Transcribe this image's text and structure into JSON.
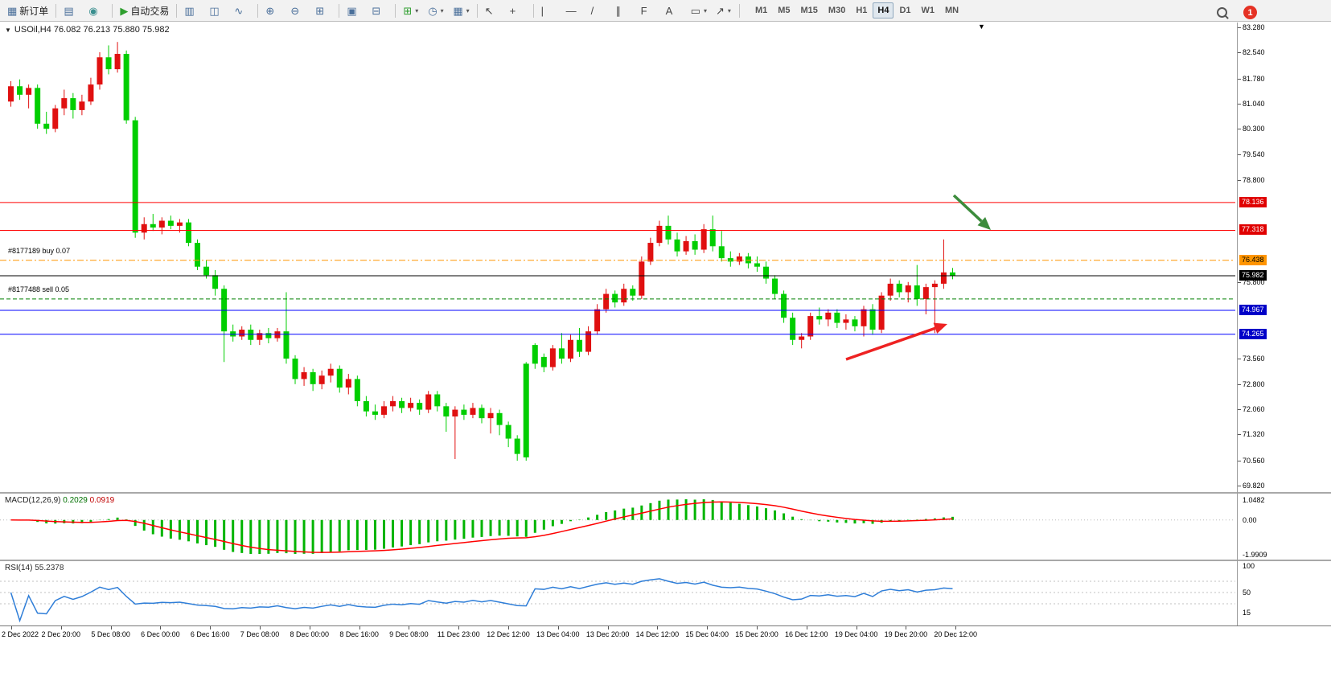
{
  "colors": {
    "candle_up": "#e01010",
    "candle_down": "#00ce00",
    "macd_hist": "#00b400",
    "macd_signal": "#ff0000",
    "rsi_line": "#2f7ed8",
    "badge_red": "#e00000",
    "badge_blue": "#0000c8",
    "badge_orange": "#ff9500"
  },
  "toolbar": {
    "notification_count": "1",
    "items": [
      {
        "name": "new-order-button",
        "icon": "new-order-icon",
        "glyph": "▦",
        "cls": "c-blue",
        "label": "新订单"
      },
      {
        "type": "sep"
      },
      {
        "name": "market-watch-button",
        "icon": "market-watch-icon",
        "glyph": "▤",
        "cls": "c-blue"
      },
      {
        "name": "strategy-tester-button",
        "icon": "tester-icon",
        "glyph": "◉",
        "cls": "c-teal"
      },
      {
        "type": "sep"
      },
      {
        "name": "auto-trading-button",
        "icon": "play-icon",
        "glyph": "▶",
        "cls": "c-green",
        "label": "自动交易"
      },
      {
        "type": "sep"
      },
      {
        "name": "bar-chart-button",
        "icon": "bar-chart-icon",
        "glyph": "▥",
        "cls": "c-blue"
      },
      {
        "name": "candlestick-chart-button",
        "icon": "candlestick-chart-icon",
        "glyph": "◫",
        "cls": "c-blue"
      },
      {
        "name": "line-chart-button",
        "icon": "line-chart-icon",
        "glyph": "∿",
        "cls": "c-blue"
      },
      {
        "type": "sep"
      },
      {
        "name": "zoom-in-button",
        "icon": "zoom-in-icon",
        "glyph": "⊕",
        "cls": "c-blue"
      },
      {
        "name": "zoom-out-button",
        "icon": "zoom-out-icon",
        "glyph": "⊖",
        "cls": "c-blue"
      },
      {
        "name": "chart-grid-button",
        "icon": "grid-icon",
        "glyph": "⊞",
        "cls": "c-blue"
      },
      {
        "type": "sep"
      },
      {
        "name": "tile-windows-button",
        "icon": "tile-windows-icon",
        "glyph": "▣",
        "cls": "c-blue"
      },
      {
        "name": "chart-list-button",
        "icon": "chart-list-icon",
        "glyph": "⊟",
        "cls": "c-blue"
      },
      {
        "type": "sep"
      },
      {
        "name": "new-chart-button",
        "icon": "new-chart-icon",
        "glyph": "⊞",
        "cls": "c-green",
        "dropdown": true
      },
      {
        "name": "period-button",
        "icon": "clock-icon",
        "glyph": "◷",
        "cls": "c-blue",
        "dropdown": true
      },
      {
        "name": "template-button",
        "icon": "template-icon",
        "glyph": "▦",
        "cls": "c-blue",
        "dropdown": true
      },
      {
        "type": "sep"
      },
      {
        "name": "cursor-button",
        "icon": "cursor-icon",
        "glyph": "↖",
        "cls": "c-dark"
      },
      {
        "name": "crosshair-button",
        "icon": "crosshair-icon",
        "glyph": "+",
        "cls": "c-dark"
      },
      {
        "type": "sep"
      },
      {
        "name": "vertical-line-button",
        "icon": "vertical-line-icon",
        "glyph": "|",
        "cls": "c-dark"
      },
      {
        "name": "horizontal-line-button",
        "icon": "horizontal-line-icon",
        "glyph": "—",
        "cls": "c-dark"
      },
      {
        "name": "trendline-button",
        "icon": "trendline-icon",
        "glyph": "/",
        "cls": "c-dark"
      },
      {
        "name": "channel-button",
        "icon": "channel-icon",
        "glyph": "∥",
        "cls": "c-dark"
      },
      {
        "name": "fibonacci-button",
        "icon": "fibonacci-icon",
        "glyph": "F",
        "cls": "c-dark"
      },
      {
        "name": "text-button",
        "icon": "text-icon",
        "glyph": "A",
        "cls": "c-dark"
      },
      {
        "name": "shapes-button",
        "icon": "shapes-icon",
        "glyph": "▭",
        "cls": "c-dark",
        "dropdown": true
      },
      {
        "name": "arrows-button",
        "icon": "arrow-icon",
        "glyph": "↗",
        "cls": "c-dark",
        "dropdown": true
      },
      {
        "type": "sep"
      }
    ],
    "timeframes": {
      "items": [
        "M1",
        "M5",
        "M15",
        "M30",
        "H1",
        "H4",
        "D1",
        "W1",
        "MN"
      ],
      "active": "H4"
    }
  },
  "chart": {
    "symbol_label": "USOil,H4 76.082 76.213 75.880 75.982",
    "price_axis": {
      "labels": [
        {
          "text": "83.280",
          "value": 83.28
        },
        {
          "text": "82.540",
          "value": 82.54
        },
        {
          "text": "81.780",
          "value": 81.78
        },
        {
          "text": "81.040",
          "value": 81.04
        },
        {
          "text": "80.300",
          "value": 80.3
        },
        {
          "text": "79.540",
          "value": 79.54
        },
        {
          "text": "78.800",
          "value": 78.8
        },
        {
          "text": "75.800",
          "value": 75.8
        },
        {
          "text": "73.560",
          "value": 73.56
        },
        {
          "text": "72.800",
          "value": 72.8
        },
        {
          "text": "72.060",
          "value": 72.06
        },
        {
          "text": "71.320",
          "value": 71.32
        },
        {
          "text": "70.560",
          "value": 70.56
        },
        {
          "text": "69.820",
          "value": 69.82
        }
      ],
      "badges": [
        {
          "text": "78.136",
          "value": 78.136,
          "type": "red"
        },
        {
          "text": "77.318",
          "value": 77.318,
          "type": "red"
        },
        {
          "text": "76.438",
          "value": 76.438,
          "type": "orange"
        },
        {
          "text": "75.982",
          "value": 75.982,
          "type": "black"
        },
        {
          "text": "74.967",
          "value": 74.967,
          "type": "blue"
        },
        {
          "text": "74.265",
          "value": 74.265,
          "type": "blue"
        }
      ]
    },
    "orders": [
      {
        "text": "#8177189 buy 0.07",
        "price": 76.55
      },
      {
        "text": "#8177488 sell 0.05",
        "price": 75.42
      }
    ],
    "time_axis": [
      "2 Dec 2022",
      "2 Dec 20:00",
      "5 Dec 08:00",
      "6 Dec 00:00",
      "6 Dec 16:00",
      "7 Dec 08:00",
      "8 Dec 00:00",
      "8 Dec 16:00",
      "9 Dec 08:00",
      "11 Dec 23:00",
      "12 Dec 12:00",
      "13 Dec 04:00",
      "13 Dec 20:00",
      "14 Dec 12:00",
      "15 Dec 04:00",
      "15 Dec 20:00",
      "16 Dec 12:00",
      "19 Dec 04:00",
      "19 Dec 20:00",
      "20 Dec 12:00"
    ]
  },
  "macd_panel": {
    "title": "MACD(12,26,9)",
    "value_main": "0.2029",
    "value_signal": "0.0919",
    "axis": [
      {
        "text": "1.0482",
        "value": 1.0482
      },
      {
        "text": "0.00",
        "value": 0
      },
      {
        "text": "-1.9909",
        "value": -1.9909
      }
    ]
  },
  "rsi_panel": {
    "title": "RSI(14)",
    "value": "55.2378",
    "axis": [
      {
        "text": "100",
        "value": 100
      },
      {
        "text": "50",
        "value": 50
      },
      {
        "text": "15",
        "value": 15
      }
    ],
    "levels": [
      70,
      50,
      30
    ]
  },
  "chart_data": {
    "type": "candlestick",
    "symbol": "USOil",
    "timeframe": "H4",
    "ohlc_current": {
      "open": 76.082,
      "high": 76.213,
      "low": 75.88,
      "close": 75.982
    },
    "price_range": [
      69.82,
      83.28
    ],
    "candles": [
      [
        81.1,
        81.7,
        80.95,
        81.55
      ],
      [
        81.55,
        81.75,
        81.15,
        81.3
      ],
      [
        81.3,
        81.6,
        80.9,
        81.5
      ],
      [
        81.5,
        81.6,
        80.3,
        80.45
      ],
      [
        80.45,
        80.8,
        80.15,
        80.3
      ],
      [
        80.3,
        81.0,
        80.2,
        80.9
      ],
      [
        80.9,
        81.45,
        80.7,
        81.2
      ],
      [
        81.2,
        81.35,
        80.6,
        80.85
      ],
      [
        80.85,
        81.3,
        80.7,
        81.1
      ],
      [
        81.1,
        81.8,
        81.0,
        81.6
      ],
      [
        81.6,
        82.55,
        81.45,
        82.4
      ],
      [
        82.4,
        82.75,
        81.9,
        82.05
      ],
      [
        82.05,
        82.85,
        81.95,
        82.5
      ],
      [
        82.5,
        82.6,
        80.45,
        80.55
      ],
      [
        80.55,
        80.65,
        77.1,
        77.25
      ],
      [
        77.25,
        77.7,
        77.05,
        77.5
      ],
      [
        77.5,
        77.8,
        77.3,
        77.4
      ],
      [
        77.4,
        77.7,
        77.2,
        77.6
      ],
      [
        77.6,
        77.75,
        77.35,
        77.45
      ],
      [
        77.45,
        77.65,
        77.25,
        77.55
      ],
      [
        77.55,
        77.65,
        76.85,
        76.95
      ],
      [
        76.95,
        77.05,
        76.15,
        76.25
      ],
      [
        76.25,
        76.45,
        75.9,
        76.0
      ],
      [
        76.0,
        76.15,
        75.4,
        75.6
      ],
      [
        75.6,
        75.7,
        73.45,
        74.35
      ],
      [
        74.35,
        74.55,
        74.05,
        74.2
      ],
      [
        74.2,
        74.5,
        74.1,
        74.4
      ],
      [
        74.4,
        74.55,
        73.95,
        74.1
      ],
      [
        74.1,
        74.4,
        73.95,
        74.3
      ],
      [
        74.3,
        74.45,
        74.0,
        74.15
      ],
      [
        74.15,
        74.45,
        74.05,
        74.35
      ],
      [
        74.35,
        75.5,
        73.4,
        73.55
      ],
      [
        73.55,
        73.65,
        72.8,
        72.95
      ],
      [
        72.95,
        73.3,
        72.75,
        73.15
      ],
      [
        73.15,
        73.25,
        72.6,
        72.8
      ],
      [
        72.8,
        73.2,
        72.65,
        73.05
      ],
      [
        73.05,
        73.4,
        72.85,
        73.25
      ],
      [
        73.25,
        73.35,
        72.55,
        72.7
      ],
      [
        72.7,
        73.1,
        72.5,
        72.95
      ],
      [
        72.95,
        73.05,
        72.15,
        72.3
      ],
      [
        72.3,
        72.45,
        71.85,
        72.0
      ],
      [
        72.0,
        72.2,
        71.75,
        71.9
      ],
      [
        71.9,
        72.3,
        71.8,
        72.15
      ],
      [
        72.15,
        72.45,
        72.0,
        72.3
      ],
      [
        72.3,
        72.4,
        71.95,
        72.1
      ],
      [
        72.1,
        72.4,
        72.0,
        72.25
      ],
      [
        72.25,
        72.35,
        71.9,
        72.05
      ],
      [
        72.05,
        72.6,
        71.95,
        72.5
      ],
      [
        72.5,
        72.6,
        72.0,
        72.15
      ],
      [
        72.15,
        72.25,
        71.4,
        71.85
      ],
      [
        71.85,
        72.15,
        70.6,
        72.05
      ],
      [
        72.05,
        72.2,
        71.75,
        71.9
      ],
      [
        71.9,
        72.25,
        71.8,
        72.1
      ],
      [
        72.1,
        72.2,
        71.65,
        71.8
      ],
      [
        71.8,
        72.1,
        71.35,
        71.95
      ],
      [
        71.95,
        72.05,
        71.3,
        71.6
      ],
      [
        71.6,
        71.7,
        70.95,
        71.2
      ],
      [
        71.2,
        71.3,
        70.55,
        70.75
      ],
      [
        73.4,
        73.45,
        70.55,
        70.65
      ],
      [
        73.95,
        74.0,
        73.25,
        73.4
      ],
      [
        73.6,
        73.7,
        73.15,
        73.3
      ],
      [
        73.3,
        73.95,
        73.2,
        73.85
      ],
      [
        73.85,
        74.3,
        73.4,
        73.55
      ],
      [
        73.55,
        74.25,
        73.45,
        74.1
      ],
      [
        74.1,
        74.45,
        73.6,
        73.75
      ],
      [
        73.75,
        74.5,
        73.65,
        74.35
      ],
      [
        74.35,
        75.15,
        74.25,
        75.0
      ],
      [
        75.0,
        75.6,
        74.9,
        75.45
      ],
      [
        75.45,
        75.55,
        75.05,
        75.2
      ],
      [
        75.2,
        75.75,
        75.1,
        75.6
      ],
      [
        75.6,
        75.7,
        75.25,
        75.4
      ],
      [
        75.4,
        76.55,
        75.3,
        76.4
      ],
      [
        76.4,
        77.1,
        76.3,
        76.95
      ],
      [
        76.95,
        77.6,
        76.85,
        77.45
      ],
      [
        77.45,
        77.75,
        76.9,
        77.05
      ],
      [
        77.05,
        77.25,
        76.55,
        76.7
      ],
      [
        76.7,
        77.15,
        76.6,
        77.0
      ],
      [
        77.0,
        77.2,
        76.6,
        76.75
      ],
      [
        76.75,
        77.5,
        76.65,
        77.35
      ],
      [
        77.35,
        77.75,
        76.7,
        76.85
      ],
      [
        76.85,
        77.3,
        76.4,
        76.5
      ],
      [
        76.5,
        76.7,
        76.25,
        76.4
      ],
      [
        76.4,
        76.65,
        76.3,
        76.55
      ],
      [
        76.55,
        76.65,
        76.2,
        76.35
      ],
      [
        76.35,
        76.55,
        76.1,
        76.25
      ],
      [
        76.25,
        76.4,
        75.75,
        75.9
      ],
      [
        75.9,
        76.0,
        75.3,
        75.45
      ],
      [
        75.45,
        75.55,
        74.6,
        74.75
      ],
      [
        74.75,
        74.9,
        73.95,
        74.1
      ],
      [
        74.1,
        74.3,
        73.85,
        74.2
      ],
      [
        74.2,
        74.9,
        74.1,
        74.8
      ],
      [
        74.8,
        75.05,
        74.55,
        74.7
      ],
      [
        74.7,
        75.0,
        74.5,
        74.9
      ],
      [
        74.9,
        75.0,
        74.45,
        74.6
      ],
      [
        74.6,
        74.85,
        74.4,
        74.7
      ],
      [
        74.7,
        74.8,
        74.35,
        74.5
      ],
      [
        74.5,
        75.1,
        74.2,
        75.0
      ],
      [
        75.0,
        75.15,
        74.25,
        74.4
      ],
      [
        74.4,
        75.5,
        74.3,
        75.4
      ],
      [
        75.4,
        75.9,
        75.25,
        75.75
      ],
      [
        75.75,
        75.85,
        75.35,
        75.5
      ],
      [
        75.5,
        75.8,
        75.2,
        75.7
      ],
      [
        75.7,
        76.3,
        75.1,
        75.3
      ],
      [
        75.3,
        75.75,
        74.85,
        75.65
      ],
      [
        75.65,
        75.85,
        74.3,
        75.75
      ],
      [
        75.75,
        77.05,
        75.6,
        76.082
      ],
      [
        76.082,
        76.213,
        75.88,
        75.982
      ]
    ],
    "levels": [
      {
        "price": 78.136,
        "color": "#ff0000",
        "style": "solid",
        "width": 1,
        "badge": "red",
        "role": "resistance"
      },
      {
        "price": 77.318,
        "color": "#ff0000",
        "style": "solid",
        "width": 1,
        "badge": "red",
        "role": "resistance"
      },
      {
        "price": 76.438,
        "color": "#ff9500",
        "style": "dashdot",
        "width": 1,
        "badge": "orange",
        "role": "buy-order"
      },
      {
        "price": 75.982,
        "color": "#000000",
        "style": "solid",
        "width": 1,
        "badge": "black",
        "role": "bid"
      },
      {
        "price": 75.3,
        "color": "#008000",
        "style": "dash",
        "width": 1,
        "badge": null,
        "role": "sell-order"
      },
      {
        "price": 74.967,
        "color": "#0000ff",
        "style": "solid",
        "width": 1,
        "badge": "blue",
        "role": "support"
      },
      {
        "price": 74.265,
        "color": "#0000ff",
        "style": "solid",
        "width": 1,
        "badge": "blue",
        "role": "support"
      }
    ],
    "indicators": [
      {
        "name": "MACD",
        "params": [
          12,
          26,
          9
        ],
        "values": [
          0.2029,
          0.0919
        ]
      },
      {
        "name": "RSI",
        "params": [
          14
        ],
        "value": 55.2378
      }
    ],
    "annotations": [
      {
        "type": "arrow",
        "name": "green-arrow",
        "color": "#3c8c3c",
        "from": [
          1186,
          215
        ],
        "to": [
          1232,
          258
        ]
      },
      {
        "type": "arrow",
        "name": "red-arrow",
        "color": "#ee2222",
        "from": [
          1052,
          419
        ],
        "to": [
          1178,
          375
        ]
      }
    ]
  }
}
